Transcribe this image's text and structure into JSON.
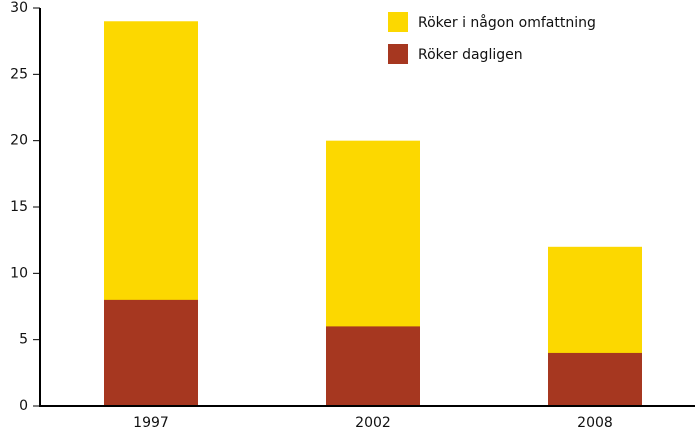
{
  "chart_data": {
    "type": "bar",
    "categories": [
      "1997",
      "2002",
      "2008"
    ],
    "series": [
      {
        "name": "Röker i någon omfattning",
        "color": "#fcd800",
        "values": [
          29,
          20,
          12
        ]
      },
      {
        "name": "Röker dagligen",
        "color": "#a63720",
        "values": [
          8,
          6,
          4
        ]
      }
    ],
    "ylim": [
      0,
      30
    ],
    "yticks": [
      0,
      5,
      10,
      15,
      20,
      25,
      30
    ],
    "grid": false,
    "legend": "top-right"
  }
}
